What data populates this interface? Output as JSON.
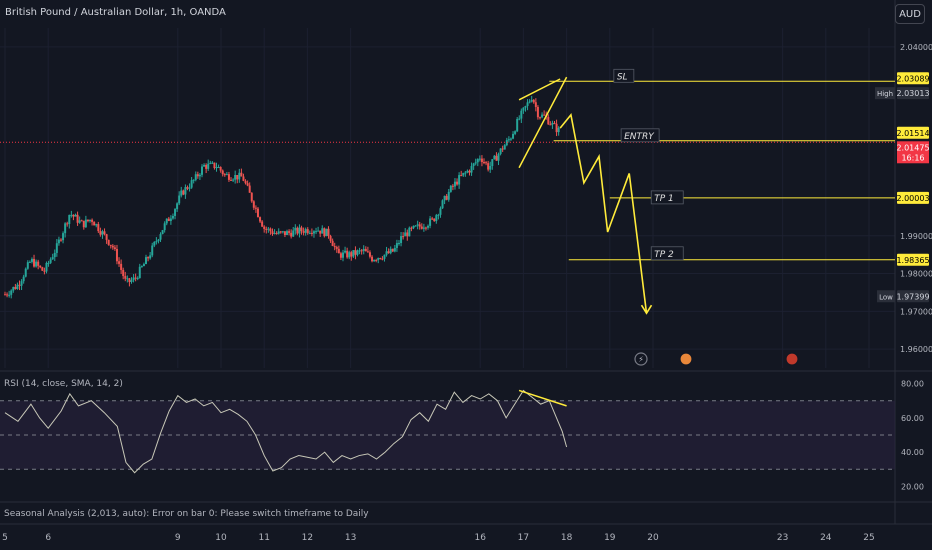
{
  "header": {
    "title": "British Pound / Australian Dollar, 1h, OANDA",
    "currency": "AUD"
  },
  "colors": {
    "background": "#131722",
    "up": "#26a69a",
    "down": "#ef5350",
    "annotation": "#ffeb3b",
    "rsi_line": "#c8c8b8",
    "current_price": "#f23645"
  },
  "chart_data": {
    "type": "candlestick",
    "symbol": "British Pound / Australian Dollar",
    "interval": "1h",
    "source": "OANDA",
    "ylim": [
      1.955,
      2.045
    ],
    "y_ticks": [
      "2.04000",
      "1.99000",
      "1.98000",
      "1.97000",
      "1.96000"
    ],
    "x_ticks": [
      {
        "label": "5",
        "day": 5
      },
      {
        "label": "6",
        "day": 6
      },
      {
        "label": "9",
        "day": 9
      },
      {
        "label": "10",
        "day": 10
      },
      {
        "label": "11",
        "day": 11
      },
      {
        "label": "12",
        "day": 12
      },
      {
        "label": "13",
        "day": 13
      },
      {
        "label": "16",
        "day": 16
      },
      {
        "label": "17",
        "day": 17
      },
      {
        "label": "18",
        "day": 18
      },
      {
        "label": "19",
        "day": 19
      },
      {
        "label": "20",
        "day": 20
      },
      {
        "label": "23",
        "day": 23
      },
      {
        "label": "24",
        "day": 24
      },
      {
        "label": "25",
        "day": 25
      }
    ],
    "price_path": [
      [
        5.0,
        1.9745
      ],
      [
        5.3,
        1.977
      ],
      [
        5.6,
        1.9835
      ],
      [
        5.9,
        1.9805
      ],
      [
        6.2,
        1.987
      ],
      [
        6.5,
        1.996
      ],
      [
        6.8,
        1.993
      ],
      [
        7.0,
        1.9945
      ],
      [
        7.3,
        1.99
      ],
      [
        7.5,
        1.987
      ],
      [
        7.8,
        1.9775
      ],
      [
        8.0,
        1.9785
      ],
      [
        8.3,
        1.984
      ],
      [
        8.6,
        1.991
      ],
      [
        8.9,
        1.9965
      ],
      [
        9.1,
        2.0015
      ],
      [
        9.4,
        2.005
      ],
      [
        9.6,
        2.0085
      ],
      [
        9.9,
        2.0085
      ],
      [
        10.1,
        2.006
      ],
      [
        10.5,
        2.0055
      ],
      [
        10.7,
        2.0
      ],
      [
        11.0,
        1.992
      ],
      [
        11.3,
        1.9905
      ],
      [
        11.6,
        1.9908
      ],
      [
        11.9,
        1.9915
      ],
      [
        12.2,
        1.9918
      ],
      [
        12.5,
        1.9905
      ],
      [
        12.7,
        1.985
      ],
      [
        13.0,
        1.985
      ],
      [
        13.3,
        1.986
      ],
      [
        13.5,
        1.984
      ],
      [
        13.8,
        1.985
      ],
      [
        14.0,
        1.986
      ],
      [
        14.2,
        1.99
      ],
      [
        14.5,
        1.992
      ],
      [
        14.7,
        1.993
      ],
      [
        14.9,
        1.994
      ],
      [
        15.1,
        1.998
      ],
      [
        15.3,
        2.002
      ],
      [
        15.5,
        2.005
      ],
      [
        15.8,
        2.008
      ],
      [
        16.0,
        2.011
      ],
      [
        16.2,
        2.008
      ],
      [
        16.5,
        2.013
      ],
      [
        16.7,
        2.016
      ],
      [
        16.9,
        2.021
      ],
      [
        17.05,
        2.024
      ],
      [
        17.2,
        2.027
      ],
      [
        17.35,
        2.022
      ],
      [
        17.5,
        2.0215
      ],
      [
        17.7,
        2.019
      ],
      [
        17.85,
        2.0175
      ]
    ],
    "annotations": [
      {
        "label": "SL",
        "price": 2.03089
      },
      {
        "label": "ENTRY",
        "price": 2.01514
      },
      {
        "label": "TP 1",
        "price": 2.00003
      },
      {
        "label": "TP 2",
        "price": 1.98365
      }
    ],
    "price_labels": {
      "sl": "2.03089",
      "high_tag": "High",
      "high": "2.03013",
      "entry": "2.01514",
      "current": "2.01475",
      "countdown": "16:16",
      "tp1": "2.00003",
      "tp2": "1.98365",
      "low_tag": "Low",
      "low": "1.97399"
    },
    "projection": [
      [
        17.85,
        2.0185
      ],
      [
        18.1,
        2.022
      ],
      [
        18.4,
        2.004
      ],
      [
        18.75,
        2.011
      ],
      [
        18.95,
        1.991
      ],
      [
        19.45,
        2.0065
      ],
      [
        19.85,
        1.9695
      ]
    ],
    "wedge": {
      "lower": [
        [
          16.9,
          2.008
        ],
        [
          18.0,
          2.032
        ]
      ],
      "upper": [
        [
          16.9,
          2.026
        ],
        [
          17.85,
          2.0315
        ]
      ]
    },
    "rsi": {
      "title": "RSI (14, close, SMA, 14, 2)",
      "ylim": [
        15,
        85
      ],
      "ticks": [
        "80.00",
        "60.00",
        "40.00",
        "20.00"
      ],
      "levels": [
        70,
        50,
        30
      ],
      "values": [
        [
          5.0,
          63
        ],
        [
          5.3,
          58
        ],
        [
          5.6,
          68
        ],
        [
          5.8,
          60
        ],
        [
          6.0,
          54
        ],
        [
          6.3,
          64
        ],
        [
          6.5,
          74
        ],
        [
          6.7,
          67
        ],
        [
          7.0,
          70
        ],
        [
          7.3,
          63
        ],
        [
          7.6,
          55
        ],
        [
          7.8,
          34
        ],
        [
          8.0,
          28
        ],
        [
          8.2,
          33
        ],
        [
          8.4,
          36
        ],
        [
          8.6,
          51
        ],
        [
          8.8,
          64
        ],
        [
          9.0,
          73
        ],
        [
          9.2,
          69
        ],
        [
          9.4,
          71
        ],
        [
          9.6,
          67
        ],
        [
          9.8,
          69
        ],
        [
          10.0,
          63
        ],
        [
          10.2,
          65
        ],
        [
          10.4,
          62
        ],
        [
          10.6,
          58
        ],
        [
          10.8,
          50
        ],
        [
          11.0,
          38
        ],
        [
          11.2,
          29
        ],
        [
          11.4,
          31
        ],
        [
          11.6,
          36
        ],
        [
          11.8,
          38
        ],
        [
          12.0,
          37
        ],
        [
          12.2,
          36
        ],
        [
          12.4,
          40
        ],
        [
          12.6,
          34
        ],
        [
          12.8,
          38
        ],
        [
          13.0,
          36
        ],
        [
          13.2,
          38
        ],
        [
          13.4,
          39
        ],
        [
          13.6,
          36
        ],
        [
          13.8,
          40
        ],
        [
          14.0,
          45
        ],
        [
          14.2,
          49
        ],
        [
          14.4,
          59
        ],
        [
          14.6,
          63
        ],
        [
          14.8,
          58
        ],
        [
          15.0,
          68
        ],
        [
          15.2,
          65
        ],
        [
          15.4,
          75
        ],
        [
          15.6,
          69
        ],
        [
          15.8,
          73
        ],
        [
          16.0,
          71
        ],
        [
          16.2,
          74
        ],
        [
          16.4,
          70
        ],
        [
          16.6,
          60
        ],
        [
          16.8,
          68
        ],
        [
          17.0,
          76
        ],
        [
          17.2,
          72
        ],
        [
          17.4,
          68
        ],
        [
          17.6,
          70
        ],
        [
          17.8,
          58
        ],
        [
          17.9,
          52
        ],
        [
          18.0,
          43
        ]
      ],
      "divergence": [
        [
          16.9,
          76
        ],
        [
          18.0,
          67
        ]
      ]
    },
    "footer": "Seasonal Analysis (2,013, auto): Error on bar 0: Please switch timeframe to Daily"
  }
}
